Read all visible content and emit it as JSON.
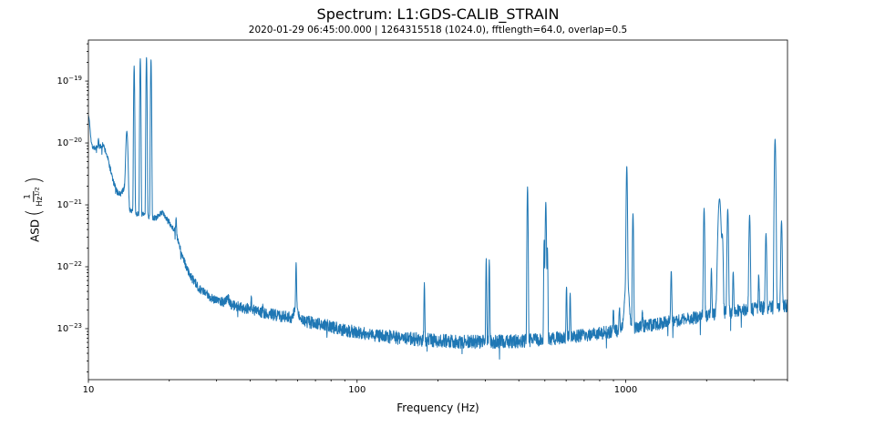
{
  "header": {
    "title": "Spectrum: L1:GDS-CALIB_STRAIN",
    "subtitle": "2020-01-29 06:45:00.000 | 1264315518 (1024.0), fftlength=64.0, overlap=0.5"
  },
  "chart_data": {
    "type": "line",
    "title": "Spectrum: L1:GDS-CALIB_STRAIN",
    "subtitle": "2020-01-29 06:45:00.000 | 1264315518 (1024.0), fftlength=64.0, overlap=0.5",
    "channel": "L1:GDS-CALIB_STRAIN",
    "params": {
      "start_time": "2020-01-29 06:45:00.000",
      "gps": "1264315518",
      "duration": "1024.0",
      "fftlength": "64.0",
      "overlap": "0.5"
    },
    "xlabel": "Frequency (Hz)",
    "ylabel": "ASD (1/Hz^(1/2))",
    "ylabel_parts": {
      "prefix": "ASD",
      "numerator": "1",
      "den_base": "Hz",
      "den_exp": "1/2"
    },
    "xscale": "log",
    "yscale": "log",
    "xlim": [
      10,
      4000
    ],
    "ylim": [
      1.5e-24,
      4.6e-19
    ],
    "grid": false,
    "legend": "none",
    "line_color": "#1f77b4",
    "axis_color": "#000000",
    "xticks": [
      {
        "v": 10,
        "label": "10"
      },
      {
        "v": 100,
        "label": "100"
      },
      {
        "v": 1000,
        "label": "1000"
      }
    ],
    "yticks": [
      {
        "v": 1e-19,
        "base": "10",
        "exp": "−19"
      },
      {
        "v": 1e-20,
        "base": "10",
        "exp": "−20"
      },
      {
        "v": 1e-21,
        "base": "10",
        "exp": "−21"
      },
      {
        "v": 1e-22,
        "base": "10",
        "exp": "−22"
      },
      {
        "v": 1e-23,
        "base": "10",
        "exp": "−23"
      }
    ],
    "noise_floor": [
      [
        10,
        1.05e-20
      ],
      [
        10.25,
        8.8e-21
      ],
      [
        10.6,
        8.2e-21
      ],
      [
        11.0,
        8.6e-21
      ],
      [
        11.35,
        9.3e-21
      ],
      [
        11.7,
        6.5e-21
      ],
      [
        12.0,
        4.2e-21
      ],
      [
        12.4,
        2.3e-21
      ],
      [
        12.8,
        1.6e-21
      ],
      [
        13.2,
        1.5e-21
      ],
      [
        13.6,
        1.9e-21
      ],
      [
        14.2,
        8.5e-22
      ],
      [
        15.0,
        7.2e-22
      ],
      [
        16.0,
        7e-22
      ],
      [
        17.0,
        6.3e-22
      ],
      [
        18.0,
        6e-22
      ],
      [
        19.0,
        5.8e-22
      ],
      [
        20.0,
        5.2e-22
      ],
      [
        21.0,
        3.8e-22
      ],
      [
        22.0,
        1.9e-22
      ],
      [
        23.0,
        1.05e-22
      ],
      [
        24.0,
        7e-23
      ],
      [
        25.5,
        4.8e-23
      ],
      [
        27.0,
        3.8e-23
      ],
      [
        29.0,
        3.1e-23
      ],
      [
        32.0,
        2.7e-23
      ],
      [
        36.0,
        2.3e-23
      ],
      [
        40.0,
        2.05e-23
      ],
      [
        45.0,
        1.8e-23
      ],
      [
        50.0,
        1.65e-23
      ],
      [
        57.0,
        1.5e-23
      ],
      [
        65.0,
        1.3e-23
      ],
      [
        75.0,
        1.15e-23
      ],
      [
        90.0,
        9.5e-24
      ],
      [
        110.0,
        8.2e-24
      ],
      [
        140.0,
        7.2e-24
      ],
      [
        180.0,
        6.6e-24
      ],
      [
        230.0,
        6.2e-24
      ],
      [
        300.0,
        6.1e-24
      ],
      [
        400.0,
        6.3e-24
      ],
      [
        520.0,
        6.8e-24
      ],
      [
        700.0,
        7.8e-24
      ],
      [
        900.0,
        9e-24
      ],
      [
        1100.0,
        1.05e-23
      ],
      [
        1400.0,
        1.25e-23
      ],
      [
        1800.0,
        1.5e-23
      ],
      [
        2300.0,
        1.8e-23
      ],
      [
        2900.0,
        2.05e-23
      ],
      [
        3500.0,
        2.2e-23
      ],
      [
        4000.0,
        2.35e-23
      ]
    ],
    "noise_band_log10_halfwidth": [
      [
        10,
        0.035
      ],
      [
        12,
        0.05
      ],
      [
        15,
        0.04
      ],
      [
        20,
        0.05
      ],
      [
        25,
        0.07
      ],
      [
        40,
        0.09
      ],
      [
        70,
        0.1
      ],
      [
        150,
        0.11
      ],
      [
        400,
        0.11
      ],
      [
        1000,
        0.1
      ],
      [
        2500,
        0.105
      ],
      [
        4000,
        0.115
      ]
    ],
    "spectral_lines": [
      {
        "f": 10.0,
        "asd": 2.7e-20,
        "sig": 0.005
      },
      {
        "f": 10.9,
        "asd": 1.15e-20,
        "sig": 0.0013
      },
      {
        "f": 13.9,
        "asd": 1.55e-20,
        "sig": 0.003
      },
      {
        "f": 14.8,
        "asd": 1.75e-19,
        "sig": 0.0013
      },
      {
        "f": 15.6,
        "asd": 2.3e-19,
        "sig": 0.0013
      },
      {
        "f": 16.45,
        "asd": 2.4e-19,
        "sig": 0.0013
      },
      {
        "f": 17.1,
        "asd": 2.2e-19,
        "sig": 0.0013
      },
      {
        "f": 18.8,
        "asd": 7.5e-22,
        "sig": 0.01
      },
      {
        "f": 21.2,
        "asd": 6e-22,
        "sig": 0.0015
      },
      {
        "f": 33.0,
        "asd": 3.1e-23,
        "sig": 0.005
      },
      {
        "f": 40.4,
        "asd": 3.1e-23,
        "sig": 0.0012
      },
      {
        "f": 44.6,
        "asd": 2.4e-23,
        "sig": 0.0012
      },
      {
        "f": 59.3,
        "asd": 1.05e-22,
        "sig": 0.0013
      },
      {
        "f": 59.3,
        "asd": 2.3e-23,
        "sig": 0.007
      },
      {
        "f": 178.0,
        "asd": 5.5e-23,
        "sig": 0.0012
      },
      {
        "f": 302.5,
        "asd": 1.35e-22,
        "sig": 0.0012
      },
      {
        "f": 310.5,
        "asd": 1.28e-22,
        "sig": 0.0012
      },
      {
        "f": 431.0,
        "asd": 1.95e-21,
        "sig": 0.0013
      },
      {
        "f": 497.0,
        "asd": 2.7e-22,
        "sig": 0.0012
      },
      {
        "f": 504.0,
        "asd": 1.1e-21,
        "sig": 0.0015
      },
      {
        "f": 511.0,
        "asd": 2e-22,
        "sig": 0.0012
      },
      {
        "f": 602.0,
        "asd": 4.8e-23,
        "sig": 0.0013
      },
      {
        "f": 621.0,
        "asd": 3.8e-23,
        "sig": 0.0013
      },
      {
        "f": 900.0,
        "asd": 2e-23,
        "sig": 0.0015
      },
      {
        "f": 948.0,
        "asd": 2.2e-23,
        "sig": 0.0015
      },
      {
        "f": 1009.0,
        "asd": 4.1e-21,
        "sig": 0.0015
      },
      {
        "f": 1009.0,
        "asd": 6.5e-23,
        "sig": 0.006
      },
      {
        "f": 1064.0,
        "asd": 7.2e-22,
        "sig": 0.0015
      },
      {
        "f": 1153.0,
        "asd": 1.7e-23,
        "sig": 0.0015
      },
      {
        "f": 1477.0,
        "asd": 8.5e-23,
        "sig": 0.0015
      },
      {
        "f": 1957.0,
        "asd": 8.8e-22,
        "sig": 0.0016
      },
      {
        "f": 2083.0,
        "asd": 9e-23,
        "sig": 0.0015
      },
      {
        "f": 2234.0,
        "asd": 1.25e-21,
        "sig": 0.004
      },
      {
        "f": 2290.0,
        "asd": 3e-22,
        "sig": 0.002
      },
      {
        "f": 2397.0,
        "asd": 8.5e-22,
        "sig": 0.0018
      },
      {
        "f": 2512.0,
        "asd": 8.5e-23,
        "sig": 0.0015
      },
      {
        "f": 2891.0,
        "asd": 6.8e-22,
        "sig": 0.0018
      },
      {
        "f": 3126.0,
        "asd": 7.5e-23,
        "sig": 0.0015
      },
      {
        "f": 3327.0,
        "asd": 3.4e-22,
        "sig": 0.0018
      },
      {
        "f": 3596.0,
        "asd": 1.15e-20,
        "sig": 0.0018
      },
      {
        "f": 3800.0,
        "asd": 5.5e-22,
        "sig": 0.0018
      }
    ]
  }
}
